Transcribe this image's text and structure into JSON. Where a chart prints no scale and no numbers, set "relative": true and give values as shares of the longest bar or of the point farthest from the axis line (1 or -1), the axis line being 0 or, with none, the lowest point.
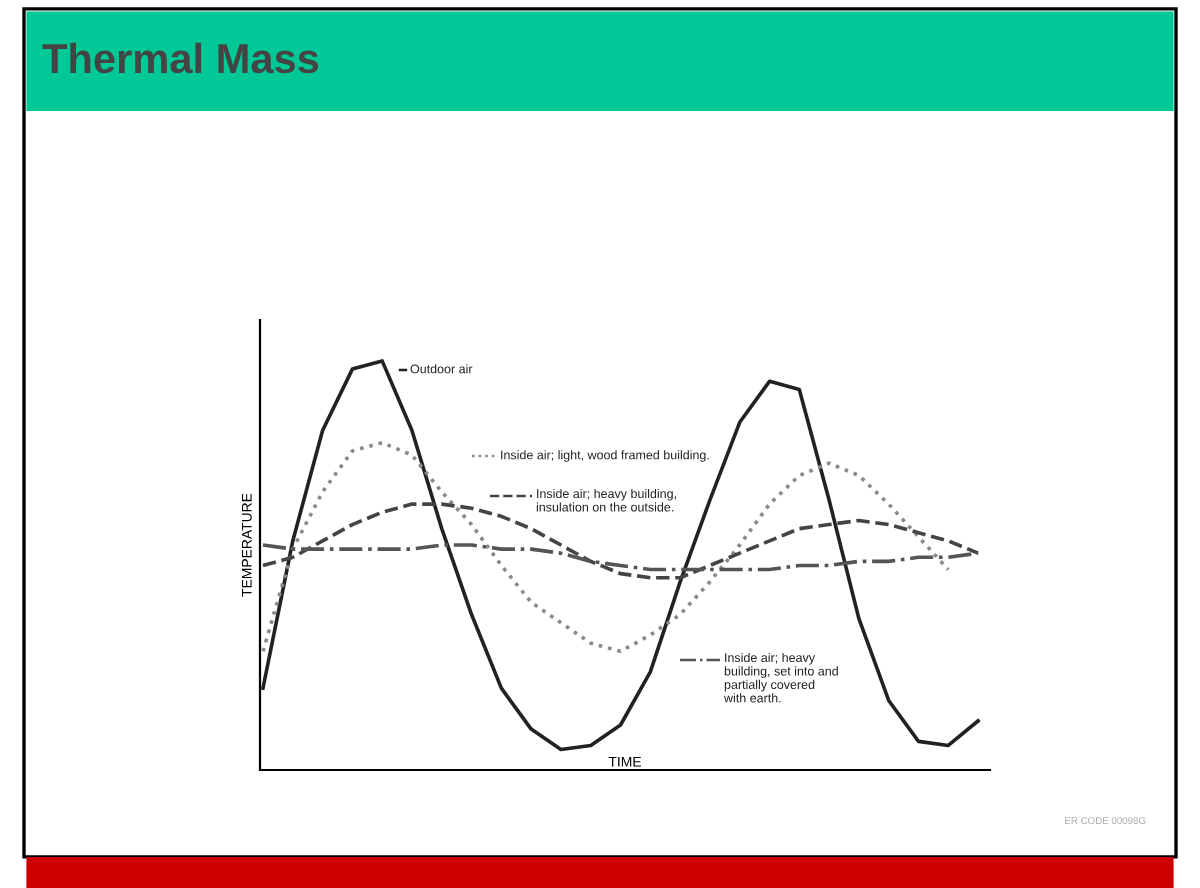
{
  "chart_data": {
    "type": "line",
    "title": "Thermal Mass",
    "xlabel": "TIME",
    "ylabel": "TEMPERATURE",
    "relative": true,
    "legend": "right",
    "categories": [
      null,
      null,
      null,
      null,
      null,
      null,
      null,
      null,
      null,
      null,
      null,
      null,
      null,
      null,
      null,
      null,
      null,
      null,
      null,
      null,
      null,
      null,
      null,
      null,
      null
    ],
    "series": [
      {
        "name": "Outdoor air",
        "color": "#222222",
        "line_style": "solid",
        "values": [
          0.2,
          0.56,
          0.83,
          0.98,
          1.0,
          0.83,
          0.59,
          0.38,
          0.2,
          0.1,
          0.05,
          0.06,
          0.11,
          0.24,
          0.46,
          0.66,
          0.85,
          0.95,
          0.93,
          0.66,
          0.37,
          0.17,
          0.07,
          0.06,
          0.12
        ]
      },
      {
        "name": "Inside air; light, wood framed building.",
        "color": "#8a8a8a",
        "line_style": "dotted",
        "values": [
          0.29,
          0.54,
          0.68,
          0.78,
          0.8,
          0.77,
          0.68,
          0.6,
          0.5,
          0.41,
          0.36,
          0.31,
          0.29,
          0.33,
          0.38,
          0.46,
          0.55,
          0.65,
          0.72,
          0.75,
          0.72,
          0.65,
          0.57,
          0.49,
          null
        ]
      },
      {
        "name": "Inside air; heavy building,\ninsulation on the outside.",
        "color": "#444444",
        "line_style": "dashed",
        "values": [
          0.5,
          0.52,
          0.56,
          0.6,
          0.63,
          0.65,
          0.65,
          0.64,
          0.62,
          0.59,
          0.55,
          0.51,
          0.48,
          0.47,
          0.47,
          0.5,
          0.53,
          0.56,
          0.59,
          0.6,
          0.61,
          0.6,
          0.58,
          0.56,
          0.53
        ]
      },
      {
        "name": "Inside air; heavy\nbuilding, set into and\npartially covered\nwith earth.",
        "color": "#555555",
        "line_style": "dashdot",
        "values": [
          0.55,
          0.54,
          0.54,
          0.54,
          0.54,
          0.54,
          0.55,
          0.55,
          0.54,
          0.54,
          0.53,
          0.51,
          0.5,
          0.49,
          0.49,
          0.49,
          0.49,
          0.49,
          0.5,
          0.5,
          0.51,
          0.51,
          0.52,
          0.52,
          0.53
        ]
      }
    ],
    "annotations": [
      "ER CODE 00098G"
    ]
  }
}
